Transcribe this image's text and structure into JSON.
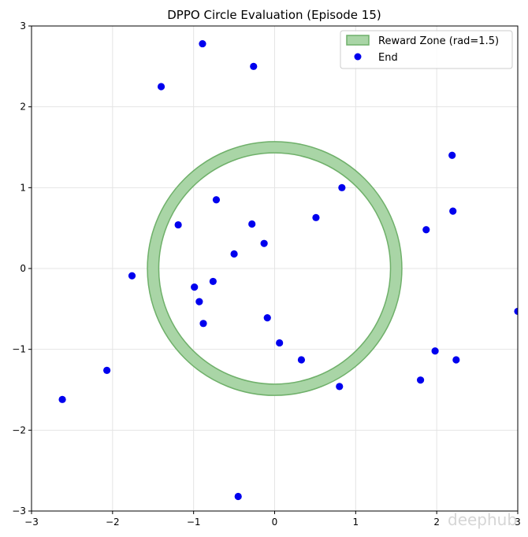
{
  "chart_data": {
    "type": "scatter",
    "title": "DPPO Circle Evaluation (Episode 15)",
    "xlabel": "",
    "ylabel": "",
    "xlim": [
      -3,
      3
    ],
    "ylim": [
      -3,
      3
    ],
    "xticks": [
      -3,
      -2,
      -1,
      0,
      1,
      2,
      3
    ],
    "yticks": [
      -3,
      -2,
      -1,
      0,
      1,
      2,
      3
    ],
    "grid": true,
    "legend_position": "top-right",
    "reward_zone": {
      "label": "Reward Zone (rad=1.5)",
      "center": [
        0,
        0
      ],
      "inner_radius": 1.43,
      "outer_radius": 1.57,
      "fill_color": "#a9d5a6",
      "edge_color": "#6fb06a"
    },
    "series": [
      {
        "name": "End",
        "color": "#0000ee",
        "points": [
          [
            -0.89,
            2.78
          ],
          [
            -0.26,
            2.5
          ],
          [
            -1.4,
            2.25
          ],
          [
            2.19,
            1.4
          ],
          [
            0.83,
            1.0
          ],
          [
            -0.72,
            0.85
          ],
          [
            2.2,
            0.71
          ],
          [
            0.51,
            0.63
          ],
          [
            -1.19,
            0.54
          ],
          [
            -0.28,
            0.55
          ],
          [
            1.87,
            0.48
          ],
          [
            -0.13,
            0.31
          ],
          [
            -0.5,
            0.18
          ],
          [
            -1.76,
            -0.09
          ],
          [
            -0.76,
            -0.16
          ],
          [
            -0.99,
            -0.23
          ],
          [
            -0.93,
            -0.41
          ],
          [
            -0.88,
            -0.68
          ],
          [
            -0.09,
            -0.61
          ],
          [
            0.06,
            -0.92
          ],
          [
            1.98,
            -1.02
          ],
          [
            0.33,
            -1.13
          ],
          [
            2.24,
            -1.13
          ],
          [
            -2.07,
            -1.26
          ],
          [
            1.8,
            -1.38
          ],
          [
            0.8,
            -1.46
          ],
          [
            -2.62,
            -1.62
          ],
          [
            -0.45,
            -2.82
          ],
          [
            3.0,
            -0.53
          ]
        ]
      }
    ]
  },
  "watermark": "deephub"
}
